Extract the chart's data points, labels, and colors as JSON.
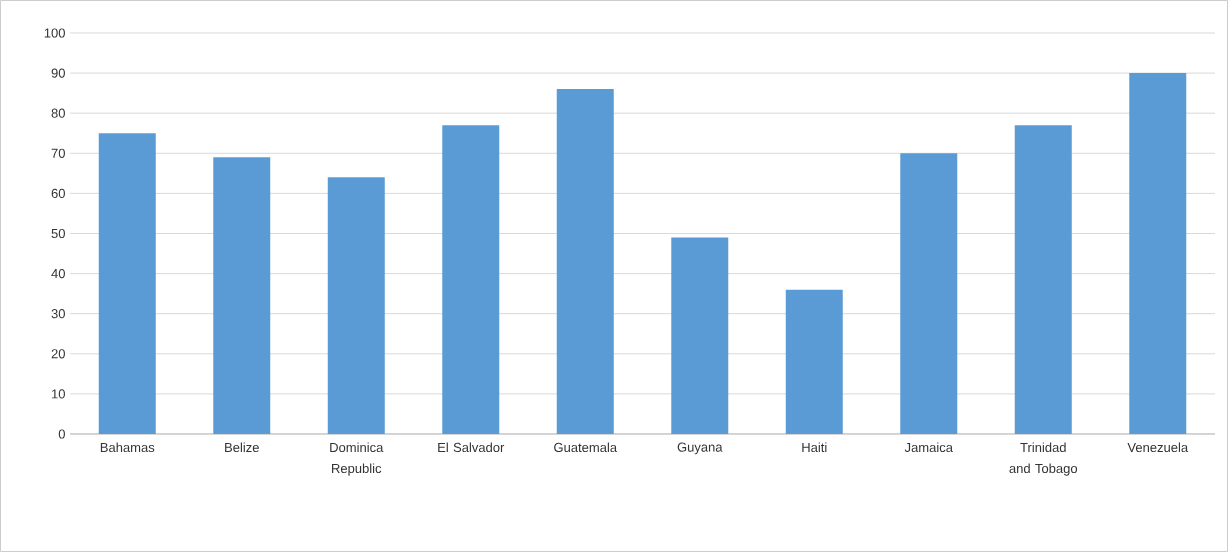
{
  "chart_data": {
    "type": "bar",
    "categories": [
      "Bahamas",
      "Belize",
      "Dominica Republic",
      "El Salvador",
      "Guatemala",
      "Guyana",
      "Haiti",
      "Jamaica",
      "Trinidad and Tobago",
      "Venezuela"
    ],
    "values": [
      75,
      69,
      64,
      77,
      86,
      49,
      36,
      70,
      77,
      90
    ],
    "color": "#5b9bd5",
    "ylim": [
      0,
      100
    ],
    "yticks": [
      0,
      10,
      20,
      30,
      40,
      50,
      60,
      70,
      80,
      90,
      100
    ],
    "grid": "y"
  }
}
